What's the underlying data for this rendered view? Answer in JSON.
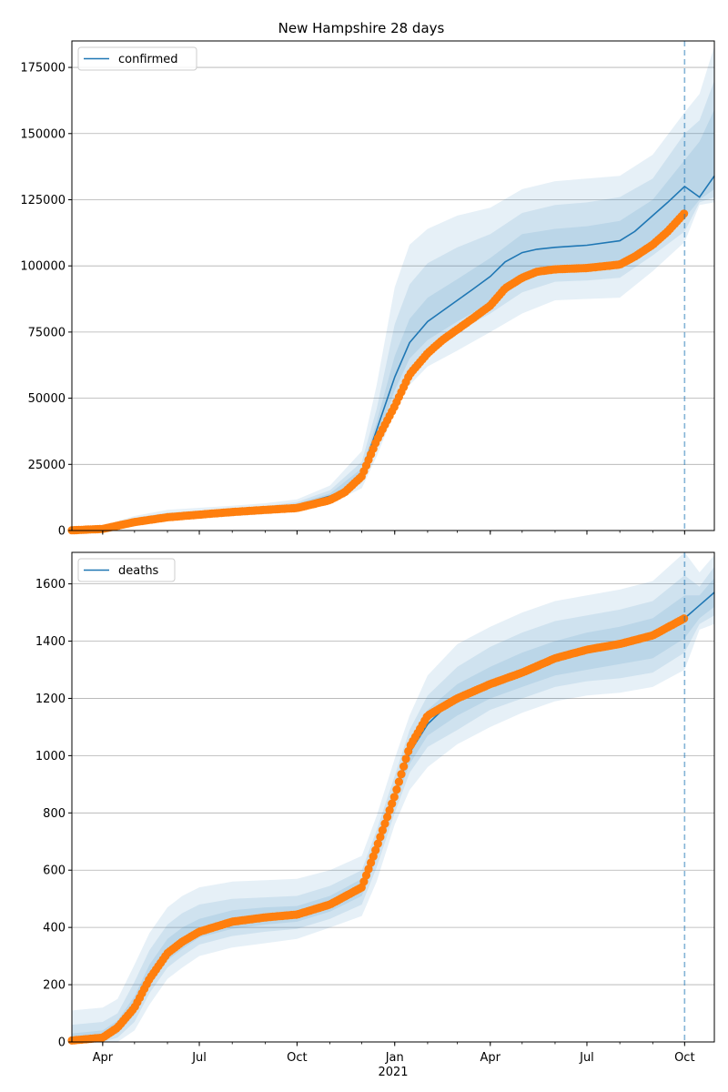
{
  "title": "New Hampshire 28 days",
  "colors": {
    "model": "#1f77b4",
    "observed": "#ff7f0e",
    "band": "#1f77b4",
    "grid": "#b0b0b0"
  },
  "x_axis": {
    "ticks": [
      {
        "date": "2020-04-01",
        "label": "Apr"
      },
      {
        "date": "2020-07-01",
        "label": "Jul"
      },
      {
        "date": "2020-10-01",
        "label": "Oct"
      },
      {
        "date": "2021-01-01",
        "label": "Jan"
      },
      {
        "date": "2021-04-01",
        "label": "Apr"
      },
      {
        "date": "2021-07-01",
        "label": "Jul"
      },
      {
        "date": "2021-10-01",
        "label": "Oct"
      }
    ],
    "year_label": "2021",
    "range": [
      "2020-03-03",
      "2021-10-29"
    ]
  },
  "forecast_start": "2021-10-01",
  "chart_data": [
    {
      "type": "line",
      "legend": "confirmed",
      "legend_position": "top-left",
      "grid": "y",
      "ylim": [
        0,
        185000
      ],
      "yticks": [
        0,
        25000,
        50000,
        75000,
        100000,
        125000,
        150000,
        175000
      ],
      "model": {
        "name": "confirmed",
        "x": [
          "2020-03-03",
          "2020-04-01",
          "2020-05-01",
          "2020-06-01",
          "2020-07-01",
          "2020-08-01",
          "2020-09-01",
          "2020-10-01",
          "2020-11-01",
          "2020-11-15",
          "2020-12-01",
          "2020-12-15",
          "2021-01-01",
          "2021-01-15",
          "2021-02-01",
          "2021-02-15",
          "2021-03-01",
          "2021-03-15",
          "2021-04-01",
          "2021-04-15",
          "2021-05-01",
          "2021-05-15",
          "2021-06-01",
          "2021-07-01",
          "2021-08-01",
          "2021-08-15",
          "2021-09-01",
          "2021-09-15",
          "2021-10-01",
          "2021-10-15",
          "2021-10-29"
        ],
        "y": [
          100,
          700,
          3800,
          5500,
          6200,
          7000,
          8000,
          9500,
          13000,
          15500,
          22000,
          38000,
          58000,
          71000,
          79000,
          83000,
          87000,
          91000,
          96000,
          101500,
          105000,
          106300,
          107000,
          107800,
          109500,
          113000,
          119000,
          124000,
          130000,
          126000,
          134000
        ]
      },
      "observed": {
        "x": [
          "2020-03-03",
          "2020-04-01",
          "2020-05-01",
          "2020-06-01",
          "2020-07-01",
          "2020-08-01",
          "2020-09-01",
          "2020-10-01",
          "2020-11-01",
          "2020-11-15",
          "2020-12-01",
          "2020-12-15",
          "2021-01-01",
          "2021-01-15",
          "2021-02-01",
          "2021-02-15",
          "2021-03-01",
          "2021-03-15",
          "2021-04-01",
          "2021-04-15",
          "2021-05-01",
          "2021-05-15",
          "2021-06-01",
          "2021-07-01",
          "2021-08-01",
          "2021-08-15",
          "2021-09-01",
          "2021-09-15",
          "2021-10-01"
        ],
        "y": [
          100,
          600,
          3200,
          5000,
          6000,
          7000,
          7800,
          8500,
          11500,
          14500,
          20500,
          34000,
          47000,
          59000,
          67000,
          72000,
          76000,
          80000,
          85000,
          91500,
          95500,
          97800,
          98700,
          99200,
          100500,
          103500,
          108000,
          113000,
          120000
        ]
      },
      "bands": [
        {
          "level": "outer",
          "x": [
            "2020-03-03",
            "2020-04-01",
            "2020-05-01",
            "2020-06-01",
            "2020-07-01",
            "2020-08-01",
            "2020-09-01",
            "2020-10-01",
            "2020-11-01",
            "2020-12-01",
            "2020-12-15",
            "2021-01-01",
            "2021-01-15",
            "2021-02-01",
            "2021-03-01",
            "2021-04-01",
            "2021-05-01",
            "2021-06-01",
            "2021-07-01",
            "2021-08-01",
            "2021-09-01",
            "2021-10-01",
            "2021-10-15",
            "2021-10-29"
          ],
          "lower": [
            0,
            0,
            2500,
            4200,
            4800,
            5400,
            6200,
            7300,
            10000,
            16000,
            28000,
            45000,
            55000,
            62000,
            68000,
            75000,
            82000,
            87000,
            87500,
            88000,
            98000,
            109000,
            123000,
            124000
          ],
          "upper": [
            800,
            1800,
            5500,
            7800,
            8600,
            9400,
            10300,
            11800,
            17000,
            30000,
            55000,
            92000,
            108000,
            114000,
            119000,
            122000,
            129000,
            132000,
            133000,
            134000,
            142000,
            158000,
            165000,
            183000
          ]
        },
        {
          "level": "middle",
          "x": [
            "2020-03-03",
            "2020-04-01",
            "2020-05-01",
            "2020-06-01",
            "2020-07-01",
            "2020-08-01",
            "2020-09-01",
            "2020-10-01",
            "2020-11-01",
            "2020-12-01",
            "2020-12-15",
            "2021-01-01",
            "2021-01-15",
            "2021-02-01",
            "2021-03-01",
            "2021-04-01",
            "2021-05-01",
            "2021-06-01",
            "2021-07-01",
            "2021-08-01",
            "2021-09-01",
            "2021-10-01",
            "2021-10-15",
            "2021-10-29"
          ],
          "lower": [
            0,
            200,
            3000,
            4600,
            5300,
            6000,
            6900,
            8000,
            11000,
            18000,
            32000,
            50000,
            61000,
            68000,
            75000,
            82000,
            90000,
            94000,
            94500,
            95500,
            104000,
            113000,
            124000,
            126000
          ],
          "upper": [
            400,
            1300,
            4800,
            6800,
            7500,
            8300,
            9200,
            10800,
            15200,
            26000,
            46000,
            78000,
            93000,
            101000,
            107000,
            112000,
            120000,
            123000,
            124000,
            126000,
            133000,
            150000,
            155000,
            170000
          ]
        },
        {
          "level": "inner",
          "x": [
            "2020-03-03",
            "2020-04-01",
            "2020-05-01",
            "2020-06-01",
            "2020-07-01",
            "2020-08-01",
            "2020-09-01",
            "2020-10-01",
            "2020-11-01",
            "2020-12-01",
            "2020-12-15",
            "2021-01-01",
            "2021-01-15",
            "2021-02-01",
            "2021-03-01",
            "2021-04-01",
            "2021-05-01",
            "2021-06-01",
            "2021-07-01",
            "2021-08-01",
            "2021-09-01",
            "2021-10-01",
            "2021-10-15",
            "2021-10-29"
          ],
          "lower": [
            50,
            400,
            3400,
            5000,
            5700,
            6500,
            7400,
            8800,
            12000,
            19500,
            34000,
            53000,
            65000,
            72000,
            79000,
            86000,
            95000,
            99000,
            99500,
            101000,
            108000,
            118000,
            125000,
            129000
          ],
          "upper": [
            200,
            900,
            4300,
            6100,
            6800,
            7600,
            8500,
            10200,
            14000,
            23500,
            41000,
            66000,
            80000,
            88000,
            95000,
            103000,
            112000,
            114000,
            115000,
            117000,
            125000,
            140000,
            147000,
            159000
          ]
        }
      ]
    },
    {
      "type": "line",
      "legend": "deaths",
      "legend_position": "top-left",
      "grid": "y",
      "ylim": [
        0,
        1710
      ],
      "yticks": [
        0,
        200,
        400,
        600,
        800,
        1000,
        1200,
        1400,
        1600
      ],
      "model": {
        "name": "deaths",
        "x": [
          "2020-03-03",
          "2020-04-01",
          "2020-04-15",
          "2020-05-01",
          "2020-05-15",
          "2020-06-01",
          "2020-06-15",
          "2020-07-01",
          "2020-08-01",
          "2020-09-01",
          "2020-10-01",
          "2020-11-01",
          "2020-12-01",
          "2020-12-15",
          "2021-01-01",
          "2021-01-15",
          "2021-02-01",
          "2021-02-15",
          "2021-03-01",
          "2021-04-01",
          "2021-05-01",
          "2021-06-01",
          "2021-07-01",
          "2021-08-01",
          "2021-09-01",
          "2021-10-01",
          "2021-10-15",
          "2021-10-29"
        ],
        "y": [
          5,
          15,
          50,
          120,
          220,
          310,
          350,
          385,
          420,
          435,
          445,
          480,
          540,
          680,
          860,
          1010,
          1110,
          1160,
          1190,
          1240,
          1290,
          1340,
          1370,
          1390,
          1420,
          1480,
          1525,
          1570
        ]
      },
      "observed": {
        "x": [
          "2020-03-03",
          "2020-04-01",
          "2020-04-15",
          "2020-05-01",
          "2020-05-15",
          "2020-06-01",
          "2020-06-15",
          "2020-07-01",
          "2020-08-01",
          "2020-09-01",
          "2020-10-01",
          "2020-11-01",
          "2020-12-01",
          "2020-12-15",
          "2021-01-01",
          "2021-01-15",
          "2021-02-01",
          "2021-02-15",
          "2021-03-01",
          "2021-04-01",
          "2021-05-01",
          "2021-06-01",
          "2021-07-01",
          "2021-08-01",
          "2021-09-01",
          "2021-10-01"
        ],
        "y": [
          5,
          15,
          50,
          120,
          220,
          310,
          350,
          385,
          420,
          435,
          445,
          480,
          540,
          680,
          860,
          1030,
          1140,
          1170,
          1200,
          1250,
          1290,
          1340,
          1370,
          1390,
          1420,
          1480
        ]
      },
      "bands": [
        {
          "level": "outer",
          "x": [
            "2020-03-03",
            "2020-04-01",
            "2020-04-15",
            "2020-05-01",
            "2020-05-15",
            "2020-06-01",
            "2020-06-15",
            "2020-07-01",
            "2020-08-01",
            "2020-09-01",
            "2020-10-01",
            "2020-11-01",
            "2020-12-01",
            "2020-12-15",
            "2021-01-01",
            "2021-01-15",
            "2021-02-01",
            "2021-03-01",
            "2021-04-01",
            "2021-05-01",
            "2021-06-01",
            "2021-07-01",
            "2021-08-01",
            "2021-09-01",
            "2021-10-01",
            "2021-10-15",
            "2021-10-29"
          ],
          "lower": [
            0,
            0,
            0,
            40,
            130,
            220,
            260,
            300,
            330,
            345,
            360,
            400,
            440,
            560,
            760,
            880,
            960,
            1040,
            1100,
            1150,
            1190,
            1210,
            1220,
            1240,
            1300,
            1440,
            1460
          ],
          "upper": [
            110,
            120,
            150,
            270,
            380,
            470,
            510,
            540,
            560,
            565,
            570,
            600,
            650,
            790,
            990,
            1140,
            1280,
            1390,
            1450,
            1500,
            1540,
            1560,
            1580,
            1610,
            1710,
            1640,
            1700
          ]
        },
        {
          "level": "middle",
          "x": [
            "2020-03-03",
            "2020-04-01",
            "2020-04-15",
            "2020-05-01",
            "2020-05-15",
            "2020-06-01",
            "2020-06-15",
            "2020-07-01",
            "2020-08-01",
            "2020-09-01",
            "2020-10-01",
            "2020-11-01",
            "2020-12-01",
            "2020-12-15",
            "2021-01-01",
            "2021-01-15",
            "2021-02-01",
            "2021-03-01",
            "2021-04-01",
            "2021-05-01",
            "2021-06-01",
            "2021-07-01",
            "2021-08-01",
            "2021-09-01",
            "2021-10-01",
            "2021-10-15",
            "2021-10-29"
          ],
          "lower": [
            0,
            0,
            15,
            70,
            170,
            260,
            300,
            340,
            370,
            385,
            395,
            430,
            480,
            610,
            800,
            940,
            1030,
            1090,
            1160,
            1200,
            1240,
            1260,
            1270,
            1290,
            1360,
            1460,
            1490
          ],
          "upper": [
            60,
            70,
            100,
            210,
            320,
            410,
            450,
            480,
            500,
            505,
            510,
            545,
            600,
            740,
            930,
            1090,
            1210,
            1310,
            1380,
            1430,
            1470,
            1490,
            1510,
            1540,
            1630,
            1590,
            1660
          ]
        },
        {
          "level": "inner",
          "x": [
            "2020-03-03",
            "2020-04-01",
            "2020-04-15",
            "2020-05-01",
            "2020-05-15",
            "2020-06-01",
            "2020-06-15",
            "2020-07-01",
            "2020-08-01",
            "2020-09-01",
            "2020-10-01",
            "2020-11-01",
            "2020-12-01",
            "2020-12-15",
            "2021-01-01",
            "2021-01-15",
            "2021-02-01",
            "2021-03-01",
            "2021-04-01",
            "2021-05-01",
            "2021-06-01",
            "2021-07-01",
            "2021-08-01",
            "2021-09-01",
            "2021-10-01",
            "2021-10-15",
            "2021-10-29"
          ],
          "lower": [
            0,
            5,
            30,
            95,
            195,
            285,
            325,
            365,
            395,
            410,
            420,
            455,
            510,
            640,
            830,
            970,
            1070,
            1140,
            1200,
            1240,
            1280,
            1300,
            1320,
            1340,
            1410,
            1480,
            1520
          ],
          "upper": [
            30,
            40,
            75,
            160,
            270,
            360,
            400,
            430,
            460,
            470,
            475,
            510,
            570,
            710,
            890,
            1050,
            1160,
            1250,
            1310,
            1360,
            1400,
            1430,
            1450,
            1480,
            1560,
            1560,
            1620
          ]
        }
      ]
    }
  ]
}
